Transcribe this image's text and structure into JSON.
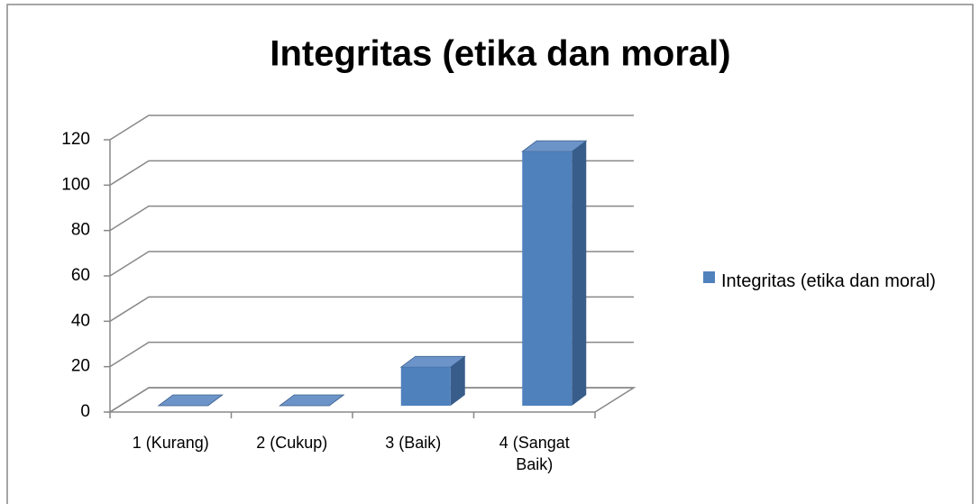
{
  "chart_data": {
    "type": "bar3d",
    "title": "Integritas (etika dan moral)",
    "categories": [
      "1 (Kurang)",
      "2 (Cukup)",
      "3 (Baik)",
      "4 (Sangat Baik)"
    ],
    "series": [
      {
        "name": "Integritas (etika dan moral)",
        "color": "#4f81bd",
        "values": [
          0,
          0,
          17,
          112
        ]
      }
    ],
    "ylim": [
      0,
      120
    ],
    "yticks": [
      0,
      20,
      40,
      60,
      80,
      100,
      120
    ],
    "grid": true,
    "legend": "right"
  }
}
